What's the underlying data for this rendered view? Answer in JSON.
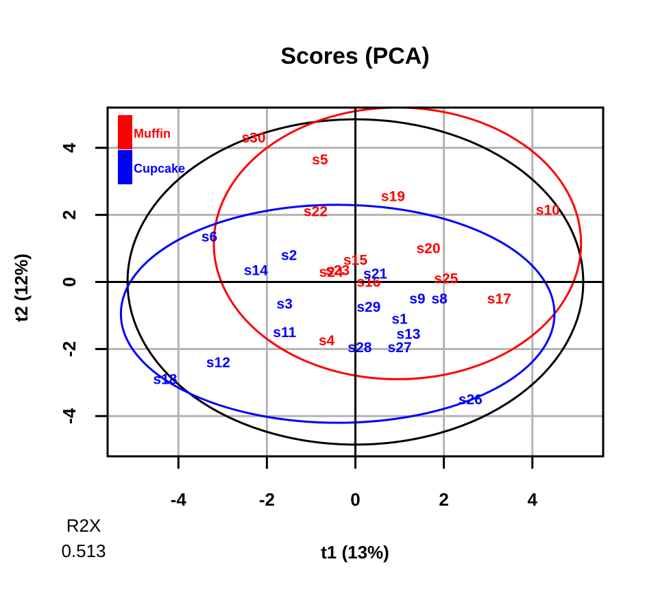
{
  "chart_data": {
    "type": "scatter",
    "title": "Scores (PCA)",
    "xlabel": "t1 (13%)",
    "ylabel": "t2 (12%)",
    "xlim": [
      -5.6,
      5.6
    ],
    "ylim": [
      -5.2,
      5.2
    ],
    "xticks": [
      -4,
      -2,
      0,
      2,
      4
    ],
    "yticks": [
      -4,
      -2,
      0,
      2,
      4
    ],
    "grid": true,
    "legend_position": "top-left",
    "series": [
      {
        "name": "Muffin",
        "color": "#ff0000",
        "points": [
          {
            "label": "s30",
            "x": -2.3,
            "y": 4.3
          },
          {
            "label": "s5",
            "x": -0.8,
            "y": 3.65
          },
          {
            "label": "s19",
            "x": 0.85,
            "y": 2.55
          },
          {
            "label": "s10",
            "x": 4.35,
            "y": 2.15
          },
          {
            "label": "s22",
            "x": -0.9,
            "y": 2.1
          },
          {
            "label": "s20",
            "x": 1.65,
            "y": 1.0
          },
          {
            "label": "s15",
            "x": 0.0,
            "y": 0.65
          },
          {
            "label": "s24",
            "x": -0.55,
            "y": 0.3
          },
          {
            "label": "s23",
            "x": -0.4,
            "y": 0.35
          },
          {
            "label": "s16",
            "x": 0.3,
            "y": 0.0
          },
          {
            "label": "s25",
            "x": 2.05,
            "y": 0.1
          },
          {
            "label": "s17",
            "x": 3.25,
            "y": -0.5
          },
          {
            "label": "s4",
            "x": -0.65,
            "y": -1.75
          }
        ]
      },
      {
        "name": "Cupcake",
        "color": "#0000ff",
        "points": [
          {
            "label": "s6",
            "x": -3.3,
            "y": 1.35
          },
          {
            "label": "s2",
            "x": -1.5,
            "y": 0.8
          },
          {
            "label": "s14",
            "x": -2.25,
            "y": 0.35
          },
          {
            "label": "s21",
            "x": 0.45,
            "y": 0.25
          },
          {
            "label": "s3",
            "x": -1.6,
            "y": -0.65
          },
          {
            "label": "s9",
            "x": 1.4,
            "y": -0.5
          },
          {
            "label": "s8",
            "x": 1.9,
            "y": -0.5
          },
          {
            "label": "s29",
            "x": 0.3,
            "y": -0.75
          },
          {
            "label": "s1",
            "x": 1.0,
            "y": -1.1
          },
          {
            "label": "s11",
            "x": -1.6,
            "y": -1.5
          },
          {
            "label": "s13",
            "x": 1.2,
            "y": -1.55
          },
          {
            "label": "s28",
            "x": 0.1,
            "y": -1.95
          },
          {
            "label": "s27",
            "x": 1.0,
            "y": -1.95
          },
          {
            "label": "s12",
            "x": -3.1,
            "y": -2.4
          },
          {
            "label": "s18",
            "x": -4.3,
            "y": -2.9
          },
          {
            "label": "s26",
            "x": 2.6,
            "y": -3.5
          }
        ]
      }
    ],
    "ellipses": [
      {
        "group": "all",
        "color": "#000000",
        "cx": 0.0,
        "cy": 0.0,
        "rx": 5.15,
        "ry": 4.85
      },
      {
        "group": "Muffin",
        "color": "#ff0000",
        "cx": 0.95,
        "cy": 1.15,
        "rx": 4.15,
        "ry": 4.05
      },
      {
        "group": "Cupcake",
        "color": "#0000ff",
        "cx": -0.4,
        "cy": -0.95,
        "rx": 4.9,
        "ry": 3.25
      }
    ],
    "annotation": {
      "label": "R2X",
      "value": "0.513"
    }
  }
}
